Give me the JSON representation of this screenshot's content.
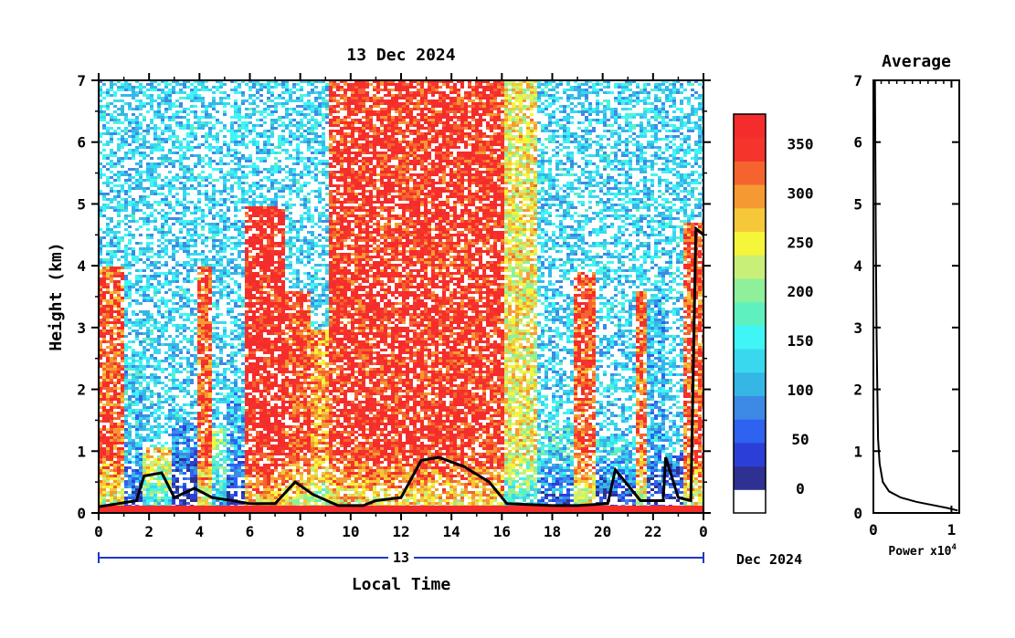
{
  "chart_data": [
    {
      "type": "heatmap",
      "title": "13 Dec 2024",
      "xlabel": "Local Time",
      "ylabel": "Height (km)",
      "xlim": [
        0,
        24
      ],
      "ylim": [
        0,
        7
      ],
      "x_ticks": [
        "0",
        "2",
        "4",
        "6",
        "8",
        "10",
        "12",
        "14",
        "16",
        "18",
        "20",
        "22",
        "0"
      ],
      "y_ticks": [
        "0",
        "1",
        "2",
        "3",
        "4",
        "5",
        "6",
        "7"
      ],
      "date_bar": {
        "day_label": "13",
        "month_year_label": "Dec 2024"
      },
      "colorbar": {
        "ticks": [
          "0",
          "50",
          "100",
          "150",
          "200",
          "250",
          "300",
          "350"
        ],
        "tick_values": [
          0,
          50,
          100,
          150,
          200,
          250,
          300,
          350
        ],
        "range": [
          -25,
          380
        ],
        "colors": [
          "#ffffff",
          "#2e3192",
          "#2b3fd8",
          "#2e62f0",
          "#3c8ae6",
          "#35b7e6",
          "#3ad8ef",
          "#3ff5f5",
          "#5ff0c0",
          "#8ef09a",
          "#c8f078",
          "#f5f53a",
          "#f5c83a",
          "#f59a32",
          "#f5642e",
          "#f5342c",
          "#f52c2c"
        ]
      },
      "bands": [
        {
          "t0": 0.0,
          "t1": 0.9,
          "top": 4.0,
          "level": 330
        },
        {
          "t0": 0.9,
          "t1": 1.6,
          "top": 2.5,
          "level": 120
        },
        {
          "t0": 1.6,
          "t1": 2.8,
          "top": 1.1,
          "level": 260
        },
        {
          "t0": 2.8,
          "t1": 3.9,
          "top": 1.5,
          "level": 90
        },
        {
          "t0": 3.9,
          "t1": 4.4,
          "top": 4.0,
          "level": 330
        },
        {
          "t0": 4.4,
          "t1": 5.0,
          "top": 1.4,
          "level": 200
        },
        {
          "t0": 5.0,
          "t1": 5.7,
          "top": 2.0,
          "level": 110
        },
        {
          "t0": 5.7,
          "t1": 7.3,
          "top": 5.0,
          "level": 365
        },
        {
          "t0": 7.3,
          "t1": 8.4,
          "top": 3.6,
          "level": 340
        },
        {
          "t0": 8.4,
          "t1": 9.0,
          "top": 3.0,
          "level": 300
        },
        {
          "t0": 9.0,
          "t1": 16.0,
          "top": 7.0,
          "level": 355
        },
        {
          "t0": 16.0,
          "t1": 17.4,
          "top": 7.0,
          "level": 250
        },
        {
          "t0": 17.4,
          "t1": 18.8,
          "top": 1.5,
          "level": 140
        },
        {
          "t0": 18.8,
          "t1": 19.6,
          "top": 3.9,
          "level": 330
        },
        {
          "t0": 19.6,
          "t1": 21.2,
          "top": 1.2,
          "level": 130
        },
        {
          "t0": 21.2,
          "t1": 21.7,
          "top": 3.6,
          "level": 320
        },
        {
          "t0": 21.7,
          "t1": 22.4,
          "top": 3.5,
          "level": 110
        },
        {
          "t0": 22.4,
          "t1": 23.2,
          "top": 1.0,
          "level": 90
        },
        {
          "t0": 23.2,
          "t1": 24.0,
          "top": 4.7,
          "level": 330
        }
      ],
      "ground_layer": [
        [
          0.0,
          0.1
        ],
        [
          1.5,
          0.2
        ],
        [
          1.8,
          0.6
        ],
        [
          2.5,
          0.65
        ],
        [
          3.0,
          0.25
        ],
        [
          3.8,
          0.4
        ],
        [
          4.5,
          0.25
        ],
        [
          5.3,
          0.2
        ],
        [
          6.0,
          0.15
        ],
        [
          7.0,
          0.15
        ],
        [
          7.8,
          0.5
        ],
        [
          8.5,
          0.3
        ],
        [
          9.5,
          0.12
        ],
        [
          10.5,
          0.12
        ],
        [
          11.0,
          0.2
        ],
        [
          12.0,
          0.25
        ],
        [
          12.8,
          0.85
        ],
        [
          13.5,
          0.9
        ],
        [
          14.5,
          0.75
        ],
        [
          15.5,
          0.5
        ],
        [
          16.2,
          0.15
        ],
        [
          18.0,
          0.12
        ],
        [
          19.0,
          0.12
        ],
        [
          20.2,
          0.15
        ],
        [
          20.5,
          0.7
        ],
        [
          21.5,
          0.2
        ],
        [
          22.4,
          0.2
        ],
        [
          22.5,
          0.9
        ],
        [
          23.0,
          0.25
        ],
        [
          23.5,
          0.2
        ],
        [
          23.7,
          4.6
        ],
        [
          24.0,
          4.5
        ]
      ]
    },
    {
      "type": "line",
      "title": "Average",
      "xlabel": "Power",
      "x_multiplier": "x10",
      "x_multiplier_exp": "4",
      "xlim": [
        0,
        1.1
      ],
      "ylim": [
        0,
        7
      ],
      "x_ticks": [
        "0",
        "1"
      ],
      "y_ticks": [
        "0",
        "1",
        "2",
        "3",
        "4",
        "5",
        "6",
        "7"
      ],
      "x": [
        0.02,
        0.03,
        0.04,
        0.05,
        0.06,
        0.08,
        0.12,
        0.2,
        0.35,
        0.55,
        0.75,
        0.95,
        1.08
      ],
      "y": [
        7.0,
        4.5,
        3.0,
        2.0,
        1.2,
        0.8,
        0.5,
        0.35,
        0.25,
        0.18,
        0.13,
        0.08,
        0.04
      ]
    }
  ],
  "colors": {
    "axis": "#000000",
    "date_bar_line": "#1d39c4",
    "title": "#000000"
  }
}
